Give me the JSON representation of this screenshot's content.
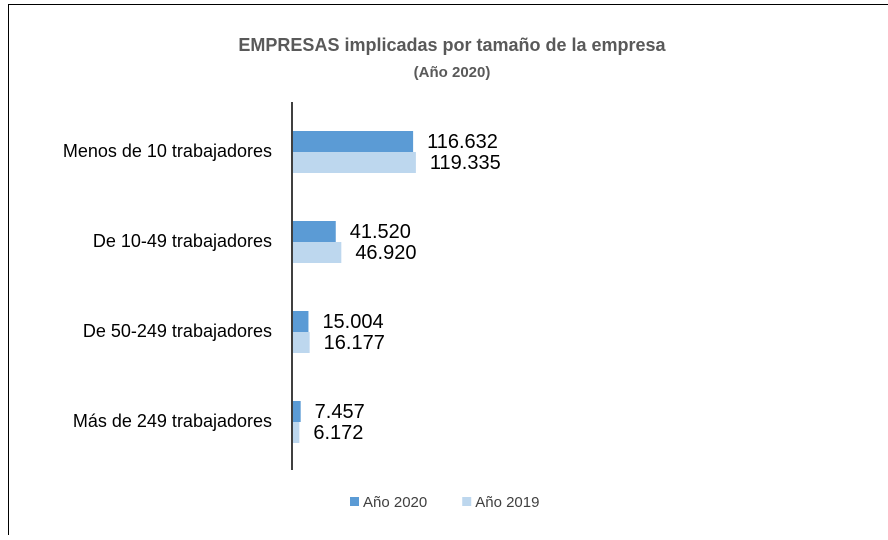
{
  "chart_data": {
    "type": "hbar",
    "title": "EMPRESAS  implicadas  por tamaño de la empresa",
    "subtitle": "(Año 2020)",
    "categories": [
      "Menos de 10 trabajadores",
      "De 10-49 trabajadores",
      "De 50-249 trabajadores",
      "Más de 249 trabajadores"
    ],
    "series": [
      {
        "name": "Año 2020",
        "color": "#5b9bd5",
        "values": [
          116632,
          41520,
          15004,
          7457
        ],
        "value_labels": [
          "116.632",
          "41.520",
          "15.004",
          "7.457"
        ]
      },
      {
        "name": "Año 2019",
        "color": "#bdd7ee",
        "values": [
          119335,
          46920,
          16177,
          6172
        ],
        "value_labels": [
          "119.335",
          "46.920",
          "16.177",
          "6.172"
        ]
      }
    ],
    "xlim": [
      0,
      570000
    ]
  }
}
